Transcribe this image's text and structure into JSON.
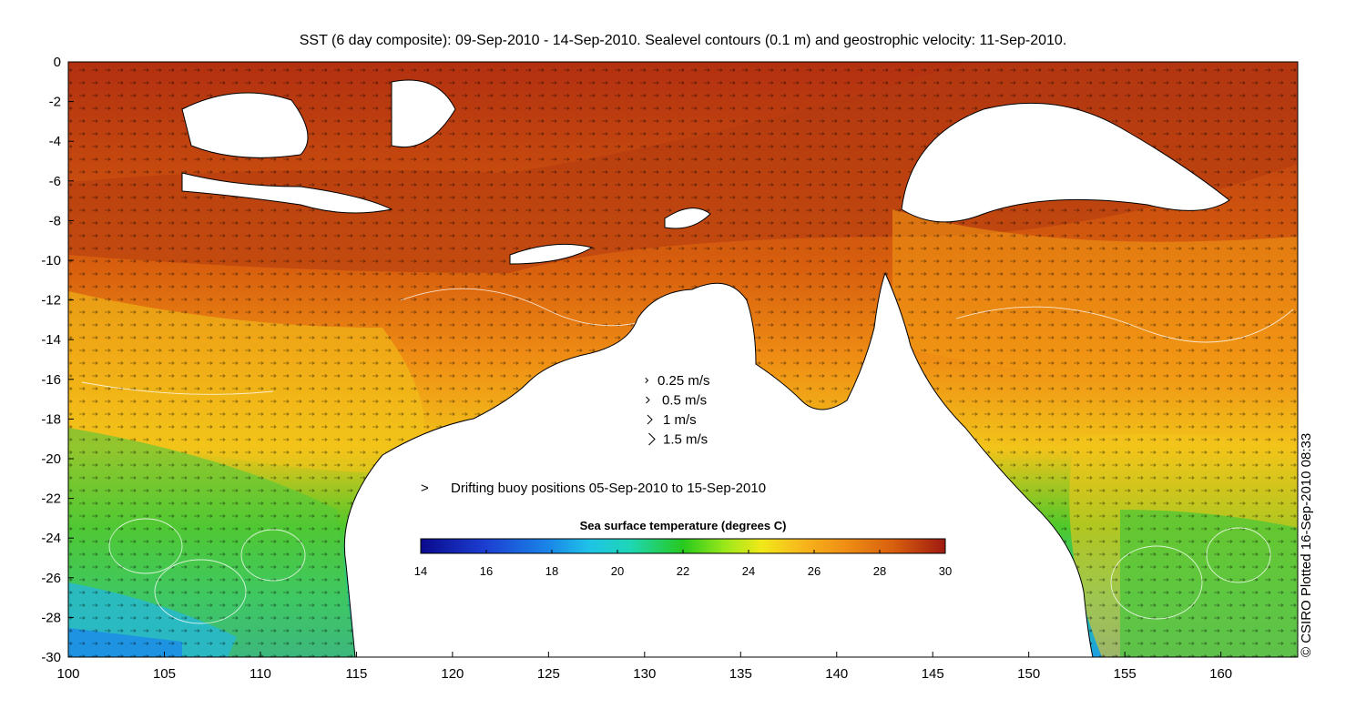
{
  "title": "SST (6 day composite): 09-Sep-2010 - 14-Sep-2010. Sealevel contours (0.1 m) and geostrophic velocity: 11-Sep-2010.",
  "credit": "© CSIRO Plotted 16-Sep-2010 08:33",
  "axes": {
    "x_ticks": [
      "100",
      "105",
      "110",
      "115",
      "120",
      "125",
      "130",
      "135",
      "140",
      "145",
      "150",
      "155",
      "160"
    ],
    "y_ticks": [
      "0",
      "-2",
      "-4",
      "-6",
      "-8",
      "-10",
      "-12",
      "-14",
      "-16",
      "-18",
      "-20",
      "-22",
      "-24",
      "-26",
      "-28",
      "-30"
    ],
    "xlim": [
      100,
      164
    ],
    "ylim": [
      -30,
      0
    ]
  },
  "velocity_legend": [
    {
      "label": "0.25 m/s",
      "speed": 0.25
    },
    {
      "label": "0.5 m/s",
      "speed": 0.5
    },
    {
      "label": "1 m/s",
      "speed": 1
    },
    {
      "label": "1.5 m/s",
      "speed": 1.5
    }
  ],
  "buoy_legend": {
    "label": "Drifting buoy positions 05-Sep-2010 to 15-Sep-2010",
    "marker": ">",
    "color": "#e040e0"
  },
  "colorbar": {
    "title": "Sea surface temperature (degrees C)",
    "ticks": [
      "14",
      "16",
      "18",
      "20",
      "22",
      "24",
      "26",
      "28",
      "30"
    ],
    "range": [
      14,
      30
    ],
    "colors": [
      "#0a0a8c",
      "#1c3fd2",
      "#1a8ae8",
      "#1fc2e8",
      "#1ed6b4",
      "#1fcf5a",
      "#27c91e",
      "#9be81a",
      "#f2e81a",
      "#f7b51c",
      "#ef8e14",
      "#d8600e",
      "#b23010",
      "#9e1a10"
    ]
  },
  "colors": {
    "land": "#ffffff",
    "coast": "#000000",
    "contour": "#ffffff",
    "buoy": "#e040e0"
  }
}
